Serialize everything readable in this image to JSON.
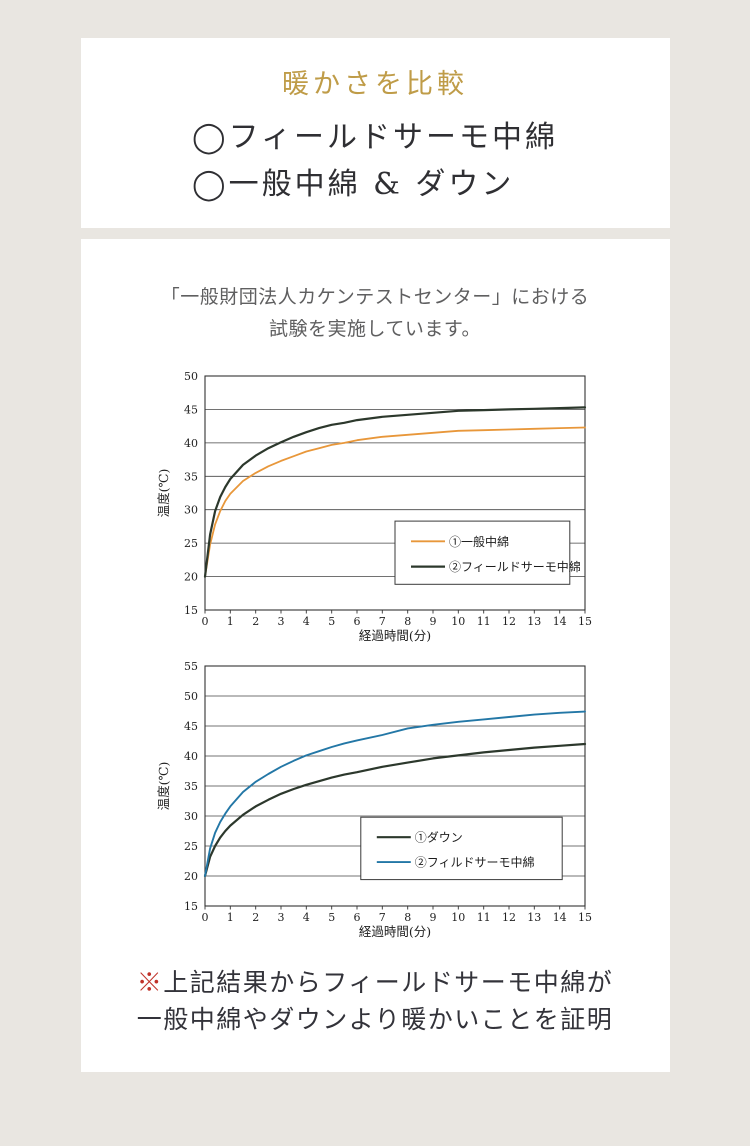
{
  "page": {
    "background": "#e9e6e1"
  },
  "intro_card": {
    "title": "暖かさを比較",
    "title_color": "#bf9c48",
    "items": [
      {
        "label": "◯フィールドサーモ中綿"
      },
      {
        "label": "◯一般中綿 & ダウン"
      }
    ]
  },
  "report_card": {
    "heading_line1": "「一般財団法人カケンテストセンター」における",
    "heading_line2": "試験を実施しています。",
    "note_marker": "※",
    "note_marker_color": "#c03229",
    "note_line1": "上記結果からフィールドサーモ中綿が",
    "note_line2": "一般中綿やダウンより暖かいことを証明",
    "text_color": "#33333a"
  },
  "chart_data": [
    {
      "type": "line",
      "title": "",
      "xlabel": "経過時間(分)",
      "ylabel": "温度(℃)",
      "xlim": [
        0,
        15
      ],
      "ylim": [
        15,
        50
      ],
      "xticks": [
        0,
        1,
        2,
        3,
        4,
        5,
        6,
        7,
        8,
        9,
        10,
        11,
        12,
        13,
        14,
        15
      ],
      "yticks": [
        15,
        20,
        25,
        30,
        35,
        40,
        45,
        50
      ],
      "grid": true,
      "grid_color": "#444444",
      "legend_position": "inside-lower-right",
      "legend_box": {
        "x": 0.5,
        "y": 0.62,
        "w": 0.46,
        "h": 0.27
      },
      "x": [
        0,
        0.2,
        0.4,
        0.6,
        0.8,
        1,
        1.5,
        2,
        2.5,
        3,
        3.5,
        4,
        4.5,
        5,
        5.5,
        6,
        7,
        8,
        9,
        10,
        11,
        12,
        13,
        14,
        15
      ],
      "series": [
        {
          "name": "①一般中綿",
          "color": "#e8973a",
          "width": 1.8,
          "y": [
            20,
            24.8,
            27.8,
            29.8,
            31.3,
            32.4,
            34.3,
            35.5,
            36.5,
            37.3,
            38.0,
            38.7,
            39.2,
            39.7,
            40.0,
            40.4,
            40.9,
            41.2,
            41.5,
            41.8,
            41.9,
            42.0,
            42.1,
            42.2,
            42.3
          ]
        },
        {
          "name": "②フィールドサーモ中綿",
          "color": "#2c382c",
          "width": 2.2,
          "y": [
            20,
            26.3,
            29.8,
            31.9,
            33.4,
            34.6,
            36.7,
            38.1,
            39.2,
            40.1,
            40.9,
            41.6,
            42.2,
            42.7,
            43.0,
            43.4,
            43.9,
            44.2,
            44.5,
            44.8,
            44.9,
            45.0,
            45.1,
            45.2,
            45.3
          ]
        }
      ]
    },
    {
      "type": "line",
      "title": "",
      "xlabel": "経過時間(分)",
      "ylabel": "温度(℃)",
      "xlim": [
        0,
        15
      ],
      "ylim": [
        15,
        55
      ],
      "xticks": [
        0,
        1,
        2,
        3,
        4,
        5,
        6,
        7,
        8,
        9,
        10,
        11,
        12,
        13,
        14,
        15
      ],
      "yticks": [
        15,
        20,
        25,
        30,
        35,
        40,
        45,
        50,
        55
      ],
      "grid": true,
      "grid_color": "#444444",
      "legend_position": "inside-lower-right",
      "legend_box": {
        "x": 0.41,
        "y": 0.63,
        "w": 0.53,
        "h": 0.26
      },
      "x": [
        0,
        0.2,
        0.4,
        0.6,
        0.8,
        1,
        1.5,
        2,
        2.5,
        3,
        3.5,
        4,
        4.5,
        5,
        5.5,
        6,
        7,
        8,
        9,
        10,
        11,
        12,
        13,
        14,
        15
      ],
      "series": [
        {
          "name": "①ダウン",
          "color": "#2c382c",
          "width": 2.2,
          "y": [
            20,
            23.2,
            25.0,
            26.4,
            27.5,
            28.4,
            30.2,
            31.6,
            32.7,
            33.7,
            34.5,
            35.2,
            35.8,
            36.4,
            36.9,
            37.3,
            38.2,
            38.9,
            39.6,
            40.1,
            40.6,
            41.0,
            41.4,
            41.7,
            42.0
          ]
        },
        {
          "name": "②フィルドサーモ中綿",
          "color": "#2377a6",
          "width": 1.9,
          "y": [
            20,
            24.6,
            27.2,
            29.0,
            30.4,
            31.6,
            34.0,
            35.7,
            37.0,
            38.2,
            39.2,
            40.1,
            40.8,
            41.5,
            42.1,
            42.6,
            43.5,
            44.6,
            45.2,
            45.7,
            46.1,
            46.5,
            46.9,
            47.2,
            47.4
          ]
        }
      ]
    }
  ]
}
